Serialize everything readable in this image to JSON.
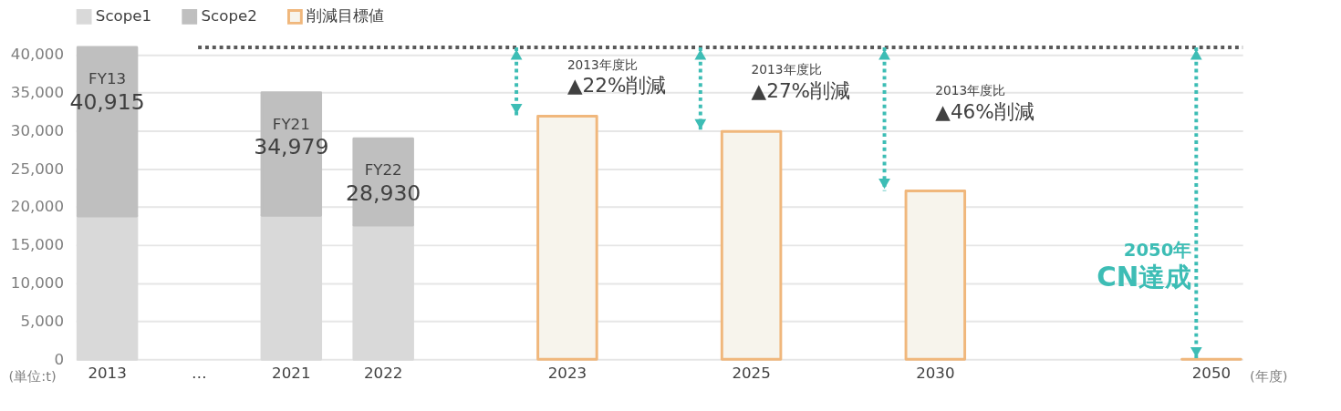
{
  "chart_data": {
    "type": "bar",
    "stacked": true,
    "categories": [
      "2013",
      "…",
      "2021",
      "2022",
      null,
      "2023",
      null,
      "2025",
      null,
      "2030",
      null,
      null,
      "2050"
    ],
    "series": [
      {
        "name": "Scope1",
        "color": "#d9d9d9",
        "values": [
          18800,
          null,
          18900,
          17600,
          null,
          null,
          null,
          null,
          null,
          null,
          null,
          null,
          null
        ]
      },
      {
        "name": "Scope2",
        "color": "#bfbfbf",
        "values": [
          22115,
          null,
          16079,
          11330,
          null,
          null,
          null,
          null,
          null,
          null,
          null,
          null,
          null
        ]
      },
      {
        "name": "削減目標値",
        "color": "#f0b77c",
        "values": [
          null,
          null,
          null,
          null,
          null,
          31900,
          null,
          29900,
          null,
          22100,
          null,
          null,
          0
        ]
      }
    ],
    "totals": [
      "40,915",
      null,
      "34,979",
      "28,930",
      null,
      null,
      null,
      null,
      null,
      null,
      null,
      null,
      null
    ],
    "annotations": [
      {
        "text": "FY13",
        "x": "2013",
        "y": 40915
      },
      {
        "text": "FY21",
        "x": "2021",
        "y": 34979
      },
      {
        "text": "FY22",
        "x": "2022",
        "y": 28930
      },
      "2013年度比\n▲22%削減",
      "2013年度比\n▲27%削減",
      "2013年度比\n▲46%削減",
      "2050年\nCN達成"
    ],
    "ref_lines": [
      {
        "axis": "y",
        "value": 40915,
        "color": "#595959",
        "line_style": "dotted"
      },
      {
        "axis": "x",
        "value": "2050",
        "color": "#3dbdb5",
        "line_style": "dotted"
      }
    ],
    "ylabel": "(単位:t)",
    "xlabel": "(年度)",
    "ylim": [
      0,
      41000
    ],
    "yticks": [
      {
        "value": 0,
        "label": "0"
      },
      {
        "value": 5000,
        "label": "5,000"
      },
      {
        "value": 10000,
        "label": "10,000"
      },
      {
        "value": 15000,
        "label": "15,000"
      },
      {
        "value": 20000,
        "label": "20,000"
      },
      {
        "value": 25000,
        "label": "25,000"
      },
      {
        "value": 30000,
        "label": "30,000"
      },
      {
        "value": 35000,
        "label": "35,000"
      },
      {
        "value": 40000,
        "label": "40,000"
      }
    ],
    "grid": "y",
    "legend": "top left"
  }
}
